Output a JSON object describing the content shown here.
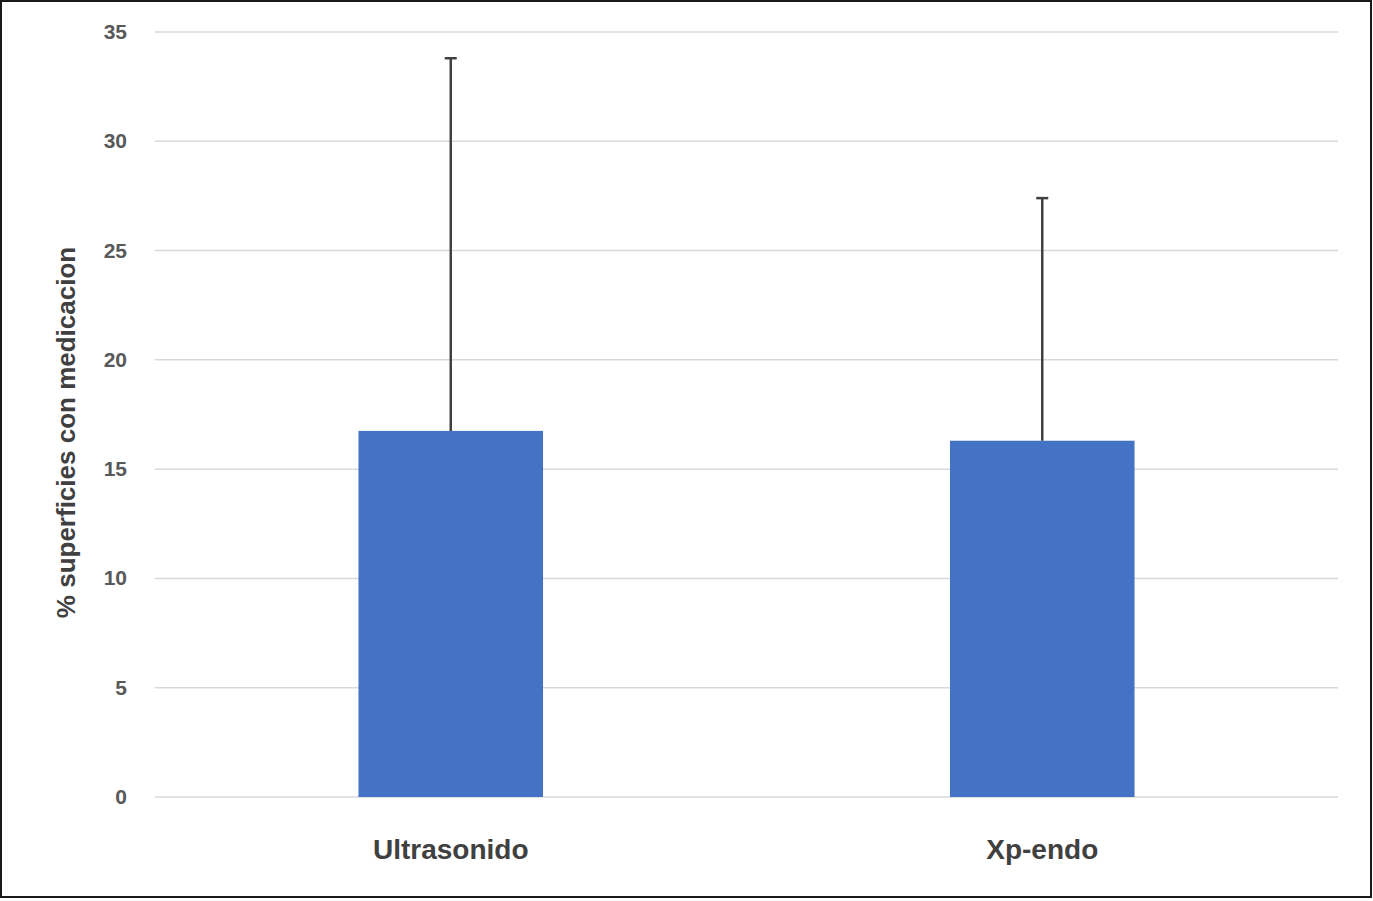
{
  "chart_data": {
    "type": "bar",
    "y_label": "% superficies con medicacion",
    "categories": [
      "Ultrasonido",
      "Xp-endo"
    ],
    "values": [
      16.75,
      16.3
    ],
    "errors": [
      17.05,
      11.1
    ],
    "color": "#4472c4",
    "ylim": [
      0,
      35
    ],
    "yticks": [
      0,
      5,
      10,
      15,
      20,
      25,
      30,
      35
    ],
    "grid": true
  }
}
